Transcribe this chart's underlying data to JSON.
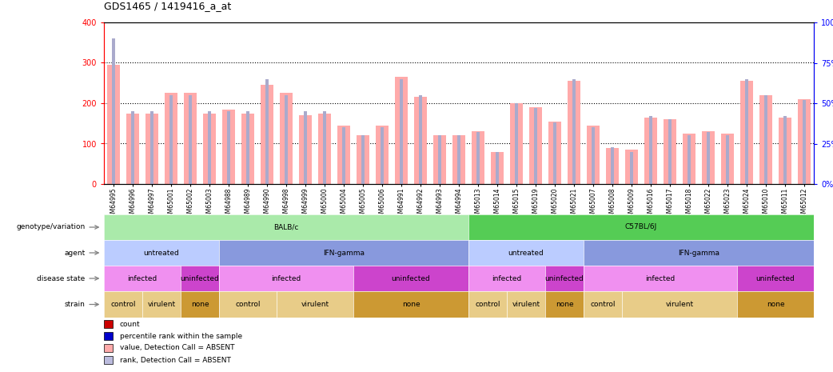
{
  "title": "GDS1465 / 1419416_a_at",
  "samples": [
    "GSM64995",
    "GSM64996",
    "GSM64997",
    "GSM65001",
    "GSM65002",
    "GSM65003",
    "GSM64988",
    "GSM64989",
    "GSM64990",
    "GSM64998",
    "GSM64999",
    "GSM65000",
    "GSM65004",
    "GSM65005",
    "GSM65006",
    "GSM64991",
    "GSM64992",
    "GSM64993",
    "GSM64994",
    "GSM65013",
    "GSM65014",
    "GSM65015",
    "GSM65019",
    "GSM65020",
    "GSM65021",
    "GSM65007",
    "GSM65008",
    "GSM65009",
    "GSM65016",
    "GSM65017",
    "GSM65018",
    "GSM65022",
    "GSM65023",
    "GSM65024",
    "GSM65010",
    "GSM65011",
    "GSM65012"
  ],
  "values": [
    295,
    175,
    175,
    225,
    225,
    175,
    185,
    175,
    245,
    225,
    170,
    175,
    145,
    120,
    145,
    265,
    215,
    120,
    120,
    130,
    80,
    200,
    190,
    155,
    255,
    145,
    90,
    85,
    165,
    160,
    125,
    130,
    125,
    255,
    220,
    165,
    210
  ],
  "ranks": [
    90,
    45,
    45,
    55,
    55,
    45,
    45,
    45,
    65,
    55,
    45,
    45,
    35,
    30,
    35,
    65,
    55,
    30,
    30,
    32,
    20,
    50,
    47,
    38,
    65,
    35,
    23,
    20,
    42,
    40,
    30,
    32,
    30,
    65,
    55,
    42,
    52
  ],
  "yticks_left": [
    0,
    100,
    200,
    300,
    400
  ],
  "yticks_right": [
    0,
    25,
    50,
    75,
    100
  ],
  "bar_color_value": "#ffaaaa",
  "bar_color_rank": "#aaaacc",
  "annotation_rows": [
    {
      "label": "genotype/variation",
      "segments": [
        {
          "text": "BALB/c",
          "start": 0,
          "end": 19,
          "color": "#aaeaaa"
        },
        {
          "text": "C57BL/6J",
          "start": 19,
          "end": 37,
          "color": "#55cc55"
        }
      ]
    },
    {
      "label": "agent",
      "segments": [
        {
          "text": "untreated",
          "start": 0,
          "end": 6,
          "color": "#bbccff"
        },
        {
          "text": "IFN-gamma",
          "start": 6,
          "end": 19,
          "color": "#8899dd"
        },
        {
          "text": "untreated",
          "start": 19,
          "end": 25,
          "color": "#bbccff"
        },
        {
          "text": "IFN-gamma",
          "start": 25,
          "end": 37,
          "color": "#8899dd"
        }
      ]
    },
    {
      "label": "disease state",
      "segments": [
        {
          "text": "infected",
          "start": 0,
          "end": 4,
          "color": "#f090f0"
        },
        {
          "text": "uninfected",
          "start": 4,
          "end": 6,
          "color": "#cc44cc"
        },
        {
          "text": "infected",
          "start": 6,
          "end": 13,
          "color": "#f090f0"
        },
        {
          "text": "uninfected",
          "start": 13,
          "end": 19,
          "color": "#cc44cc"
        },
        {
          "text": "infected",
          "start": 19,
          "end": 23,
          "color": "#f090f0"
        },
        {
          "text": "uninfected",
          "start": 23,
          "end": 25,
          "color": "#cc44cc"
        },
        {
          "text": "infected",
          "start": 25,
          "end": 33,
          "color": "#f090f0"
        },
        {
          "text": "uninfected",
          "start": 33,
          "end": 37,
          "color": "#cc44cc"
        }
      ]
    },
    {
      "label": "strain",
      "segments": [
        {
          "text": "control",
          "start": 0,
          "end": 2,
          "color": "#e8cc88"
        },
        {
          "text": "virulent",
          "start": 2,
          "end": 4,
          "color": "#e8cc88"
        },
        {
          "text": "none",
          "start": 4,
          "end": 6,
          "color": "#cc9933"
        },
        {
          "text": "control",
          "start": 6,
          "end": 9,
          "color": "#e8cc88"
        },
        {
          "text": "virulent",
          "start": 9,
          "end": 13,
          "color": "#e8cc88"
        },
        {
          "text": "none",
          "start": 13,
          "end": 19,
          "color": "#cc9933"
        },
        {
          "text": "control",
          "start": 19,
          "end": 21,
          "color": "#e8cc88"
        },
        {
          "text": "virulent",
          "start": 21,
          "end": 23,
          "color": "#e8cc88"
        },
        {
          "text": "none",
          "start": 23,
          "end": 25,
          "color": "#cc9933"
        },
        {
          "text": "control",
          "start": 25,
          "end": 27,
          "color": "#e8cc88"
        },
        {
          "text": "virulent",
          "start": 27,
          "end": 33,
          "color": "#e8cc88"
        },
        {
          "text": "none",
          "start": 33,
          "end": 37,
          "color": "#cc9933"
        }
      ]
    }
  ],
  "legend_items": [
    {
      "color": "#cc0000",
      "label": "count"
    },
    {
      "color": "#0000cc",
      "label": "percentile rank within the sample"
    },
    {
      "color": "#ffaaaa",
      "label": "value, Detection Call = ABSENT"
    },
    {
      "color": "#bbbbdd",
      "label": "rank, Detection Call = ABSENT"
    }
  ]
}
